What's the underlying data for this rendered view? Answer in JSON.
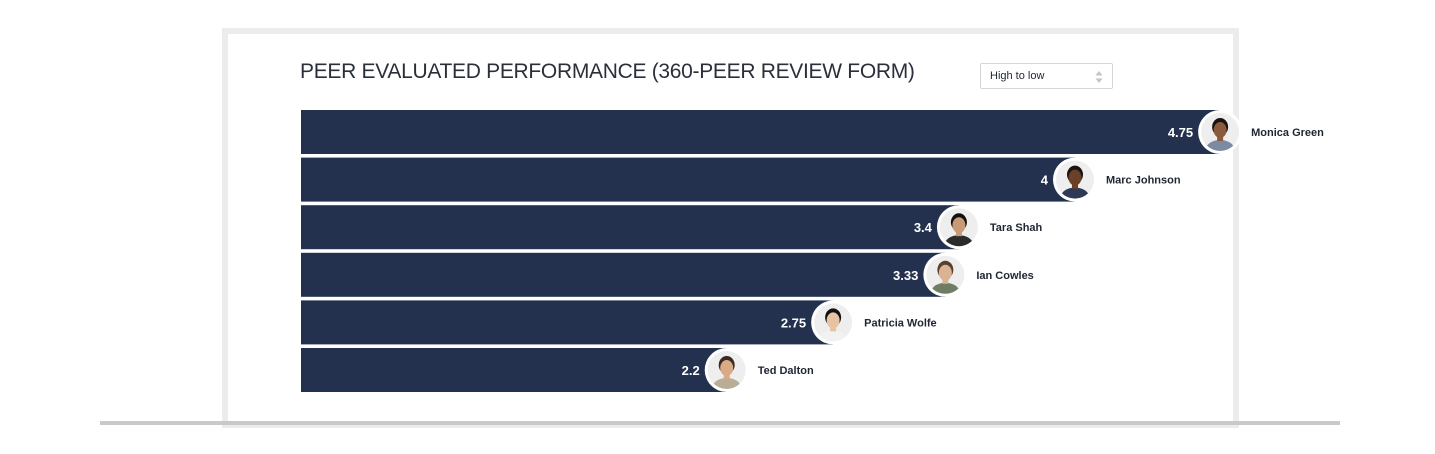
{
  "title": "PEER EVALUATED PERFORMANCE (360-PEER REVIEW FORM)",
  "sort": {
    "selected": "High to low"
  },
  "colors": {
    "bar": "#23314f",
    "value_text": "#ffffff",
    "name_text": "#1f2533"
  },
  "chart_data": {
    "type": "bar",
    "orientation": "horizontal",
    "title": "PEER EVALUATED PERFORMANCE (360-PEER REVIEW FORM)",
    "categories": [
      "Monica Green",
      "Marc Johnson",
      "Tara Shah",
      "Ian Cowles",
      "Patricia Wolfe",
      "Ted Dalton"
    ],
    "values": [
      4.75,
      4,
      3.4,
      3.33,
      2.75,
      2.2
    ],
    "value_labels": [
      "4.75",
      "4",
      "3.4",
      "3.33",
      "2.75",
      "2.2"
    ],
    "xlim": [
      0,
      5
    ],
    "grid": false,
    "legend": "none",
    "avatars": [
      "avatar-icon",
      "avatar-icon",
      "avatar-icon",
      "avatar-icon",
      "avatar-icon",
      "avatar-icon"
    ],
    "skin_tones": [
      "#8a5a3c",
      "#6b4028",
      "#c99a77",
      "#d9b394",
      "#e6c3a3",
      "#d8aa85"
    ],
    "hair_colors": [
      "#1a1310",
      "#1a1310",
      "#141010",
      "#5a3f2a",
      "#121010",
      "#3b2a20"
    ],
    "shirt_colors": [
      "#7d8aa3",
      "#2e3a55",
      "#2b2b2b",
      "#6f7d64",
      "#f2f2f2",
      "#b9ad98"
    ]
  }
}
